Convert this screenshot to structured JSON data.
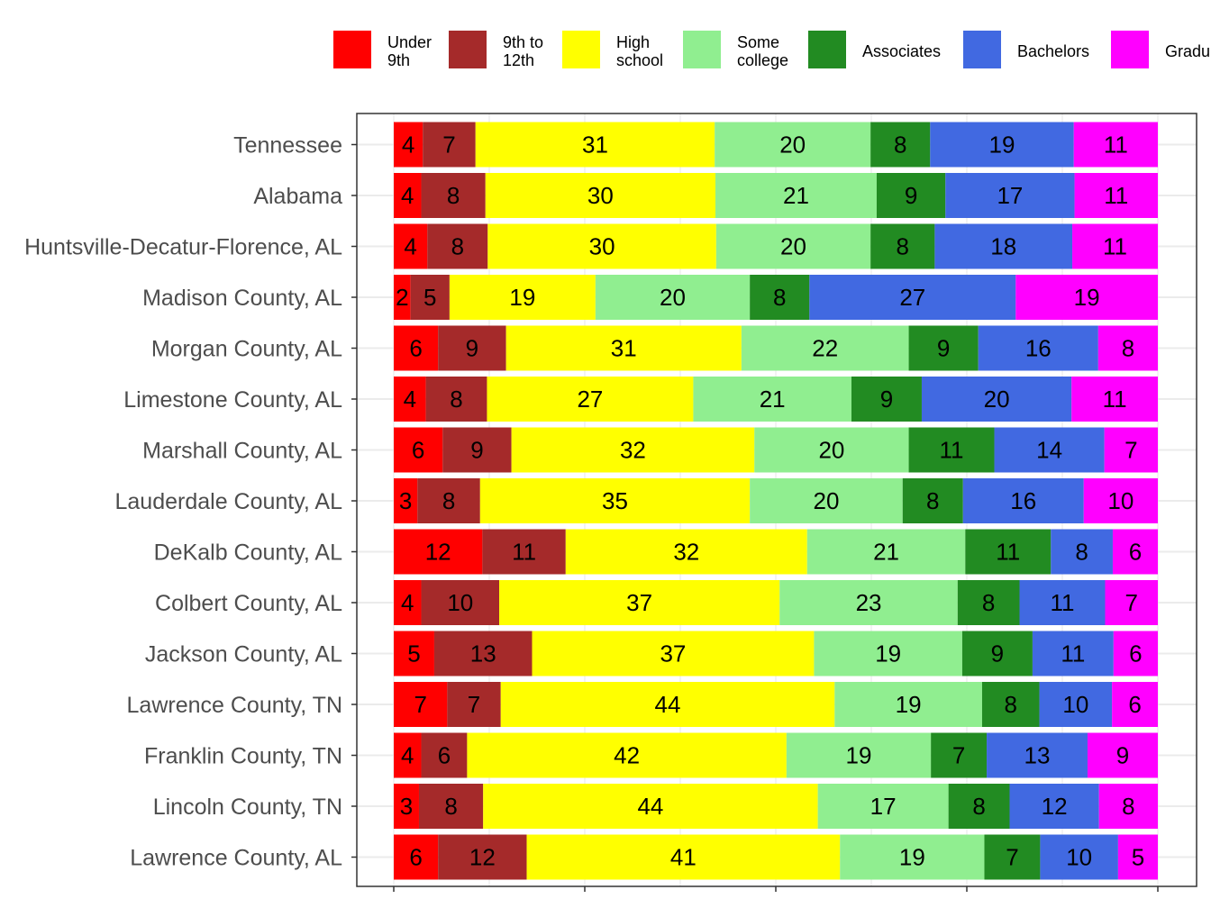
{
  "chart_data": {
    "type": "bar",
    "orientation": "horizontal",
    "stacked": true,
    "legend_position": "top",
    "grid": true,
    "xlim": [
      0,
      100
    ],
    "categories": [
      "Tennessee",
      "Alabama",
      "Huntsville-Decatur-Florence, AL",
      "Madison County, AL",
      "Morgan County, AL",
      "Limestone County, AL",
      "Marshall County, AL",
      "Lauderdale County, AL",
      "DeKalb County, AL",
      "Colbert County, AL",
      "Jackson County, AL",
      "Lawrence County, TN",
      "Franklin County, TN",
      "Lincoln County, TN",
      "Lawrence County, AL"
    ],
    "series": [
      {
        "name_lines": [
          "Under",
          "9th"
        ],
        "color": "#ff0000",
        "values": [
          3.8,
          3.6,
          4.4,
          2.2,
          5.8,
          4.2,
          6.4,
          3.1,
          11.6,
          3.6,
          5.3,
          7.0,
          3.6,
          3.3,
          5.8
        ]
      },
      {
        "name_lines": [
          "9th to",
          "12th"
        ],
        "color": "#a52a2a",
        "values": [
          6.9,
          8.4,
          7.9,
          5.1,
          8.9,
          8.0,
          9.0,
          8.2,
          10.9,
          10.2,
          12.8,
          7.0,
          6.0,
          8.4,
          11.6
        ]
      },
      {
        "name_lines": [
          "High",
          "school"
        ],
        "color": "#ffff00",
        "values": [
          31.3,
          30.1,
          29.9,
          19.1,
          30.8,
          27.0,
          31.8,
          35.3,
          31.6,
          36.7,
          36.9,
          43.7,
          41.8,
          43.8,
          41.0
        ]
      },
      {
        "name_lines": [
          "Some",
          "college"
        ],
        "color": "#90ee90",
        "values": [
          20.4,
          21.1,
          20.2,
          20.2,
          21.9,
          20.7,
          20.2,
          20.0,
          20.7,
          23.3,
          19.4,
          19.3,
          18.9,
          17.1,
          18.9
        ]
      },
      {
        "name_lines": [
          "Associates"
        ],
        "color": "#228b22",
        "values": [
          7.8,
          9.0,
          8.4,
          7.8,
          9.1,
          9.2,
          11.2,
          7.9,
          11.2,
          8.1,
          9.2,
          7.5,
          7.3,
          8.0,
          7.3
        ]
      },
      {
        "name_lines": [
          "Bachelors"
        ],
        "color": "#4169e1",
        "values": [
          18.8,
          16.9,
          18.0,
          27.0,
          15.7,
          19.6,
          14.4,
          15.8,
          8.1,
          11.2,
          10.6,
          9.5,
          13.2,
          11.7,
          10.2
        ]
      },
      {
        "name_lines": [
          "Gradu"
        ],
        "color": "#ff00ff",
        "values": [
          11.0,
          10.9,
          11.2,
          18.6,
          7.8,
          11.3,
          7.0,
          9.7,
          5.9,
          6.9,
          5.8,
          6.0,
          9.2,
          7.7,
          5.2
        ]
      }
    ]
  }
}
